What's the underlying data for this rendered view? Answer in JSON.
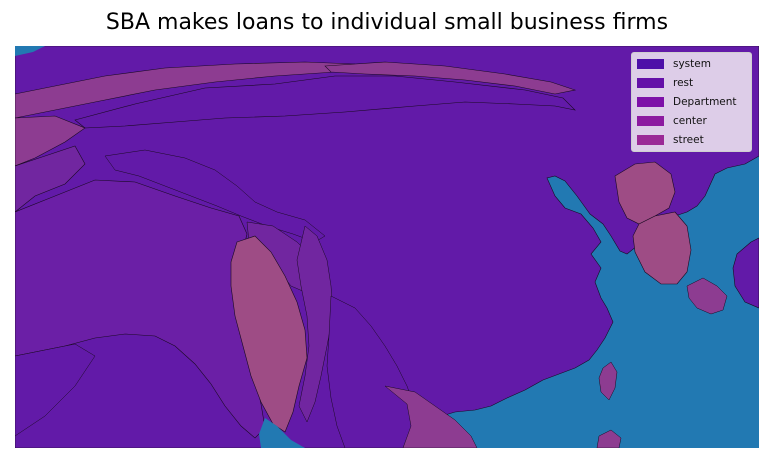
{
  "title": "SBA makes loans to individual small business firms",
  "colors": {
    "ocean": "#2279b2",
    "land_main": "#621aa8",
    "land_alt": "#6b1fa6",
    "land_violet": "#7126a0",
    "land_pink": "#8d3c91",
    "land_rose": "#9e4c85",
    "border": "#1a0a22"
  },
  "legend": {
    "items": [
      {
        "label": "system",
        "color": "#4d10a8"
      },
      {
        "label": "rest",
        "color": "#6410a8"
      },
      {
        "label": "Department",
        "color": "#7d10a8"
      },
      {
        "label": "center",
        "color": "#8c1aa0"
      },
      {
        "label": "street",
        "color": "#9a2996"
      }
    ]
  }
}
